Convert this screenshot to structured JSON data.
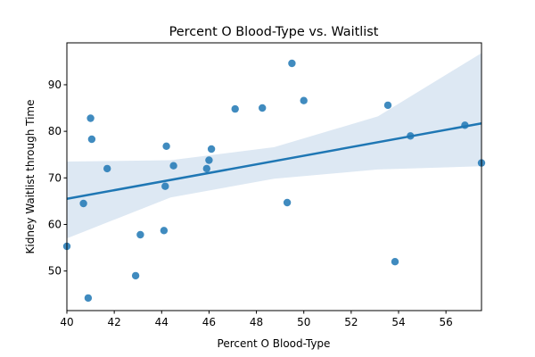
{
  "chart_data": {
    "type": "scatter",
    "title": "Percent O Blood-Type vs. Waitlist",
    "xlabel": "Percent O Blood-Type",
    "ylabel": "Kidney Waitlist through Time",
    "xlim": [
      40,
      57.5
    ],
    "ylim": [
      41.5,
      99
    ],
    "xticks": [
      "40",
      "42",
      "44",
      "46",
      "48",
      "50",
      "52",
      "54",
      "56"
    ],
    "yticks": [
      "50",
      "60",
      "70",
      "80",
      "90"
    ],
    "grid": false,
    "legend": "none",
    "points": [
      {
        "x": 40.0,
        "y": 55.3
      },
      {
        "x": 40.7,
        "y": 64.5
      },
      {
        "x": 40.9,
        "y": 44.2
      },
      {
        "x": 41.0,
        "y": 82.8
      },
      {
        "x": 41.05,
        "y": 78.3
      },
      {
        "x": 41.7,
        "y": 72.0
      },
      {
        "x": 42.9,
        "y": 49.0
      },
      {
        "x": 43.1,
        "y": 57.8
      },
      {
        "x": 44.1,
        "y": 58.7
      },
      {
        "x": 44.15,
        "y": 68.2
      },
      {
        "x": 44.2,
        "y": 76.8
      },
      {
        "x": 44.5,
        "y": 72.6
      },
      {
        "x": 45.9,
        "y": 72.0
      },
      {
        "x": 46.0,
        "y": 73.8
      },
      {
        "x": 46.1,
        "y": 76.2
      },
      {
        "x": 47.1,
        "y": 84.8
      },
      {
        "x": 48.25,
        "y": 85.0
      },
      {
        "x": 49.3,
        "y": 64.7
      },
      {
        "x": 49.5,
        "y": 94.6
      },
      {
        "x": 50.0,
        "y": 86.6
      },
      {
        "x": 53.55,
        "y": 85.6
      },
      {
        "x": 53.85,
        "y": 52.0
      },
      {
        "x": 54.5,
        "y": 79.0
      },
      {
        "x": 56.8,
        "y": 81.3
      },
      {
        "x": 57.5,
        "y": 73.2
      }
    ],
    "regression": {
      "x": [
        40.0,
        57.5
      ],
      "y": [
        65.5,
        81.7
      ]
    },
    "confidence_band": {
      "x": [
        40.0,
        44.375,
        48.75,
        53.125,
        57.5
      ],
      "lower": [
        57.0,
        65.8,
        69.8,
        71.8,
        72.5
      ],
      "upper": [
        73.5,
        73.8,
        76.6,
        83.2,
        96.8
      ]
    },
    "colors": {
      "points": "#1f77b4",
      "line": "#1f77b4",
      "band": "#dde8f3"
    }
  }
}
